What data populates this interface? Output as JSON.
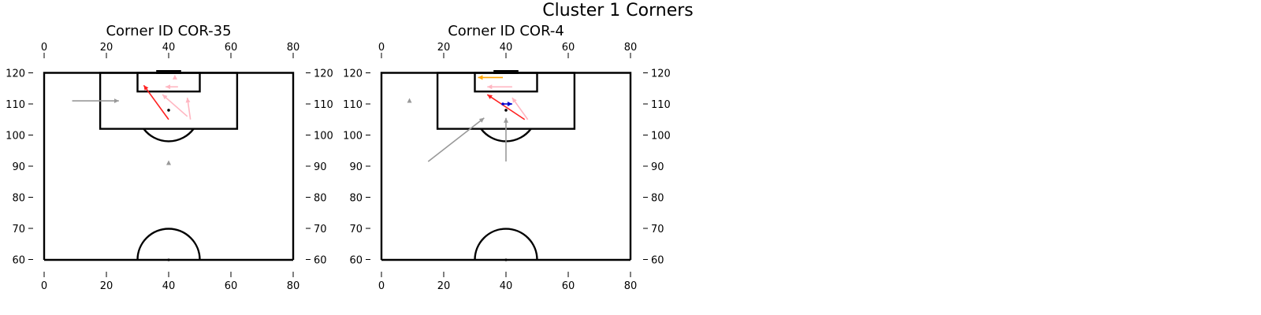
{
  "figure": {
    "title": "Cluster 1 Corners"
  },
  "chart_data": [
    {
      "type": "scatter",
      "title": "Corner ID COR-35",
      "xlim": [
        0,
        80
      ],
      "ylim": [
        60,
        120
      ],
      "xticks": [
        0,
        20,
        40,
        60,
        80
      ],
      "yticks": [
        60,
        70,
        80,
        90,
        100,
        110,
        120
      ],
      "arrows": [
        {
          "x": 9,
          "y": 111,
          "dx": 15,
          "dy": 0,
          "color": "#999999"
        },
        {
          "x": 40,
          "y": 105,
          "dx": -8,
          "dy": 11,
          "color": "#ff2020"
        },
        {
          "x": 47,
          "y": 105,
          "dx": -1,
          "dy": 7,
          "color": "#ffb6c1"
        },
        {
          "x": 46,
          "y": 106,
          "dx": -8,
          "dy": 7,
          "color": "#ffb6c1"
        },
        {
          "x": 43,
          "y": 115.5,
          "dx": -4,
          "dy": 0,
          "color": "#ffb6c1"
        }
      ],
      "markers": [
        {
          "x": 40,
          "y": 91,
          "color": "#999999",
          "shape": "triangle"
        },
        {
          "x": 42,
          "y": 118.5,
          "color": "#ffb6c1",
          "shape": "triangle"
        },
        {
          "x": 40,
          "y": 108,
          "color": "#000000",
          "shape": "dot"
        }
      ]
    },
    {
      "type": "scatter",
      "title": "Corner ID COR-4",
      "xlim": [
        0,
        80
      ],
      "ylim": [
        60,
        120
      ],
      "xticks": [
        0,
        20,
        40,
        60,
        80
      ],
      "yticks": [
        60,
        70,
        80,
        90,
        100,
        110,
        120
      ],
      "arrows": [
        {
          "x": 15,
          "y": 91.5,
          "dx": 18,
          "dy": 14,
          "color": "#999999"
        },
        {
          "x": 40,
          "y": 91.5,
          "dx": 0,
          "dy": 14,
          "color": "#999999"
        },
        {
          "x": 39,
          "y": 118.5,
          "dx": -8,
          "dy": 0,
          "color": "#ffa500"
        },
        {
          "x": 42,
          "y": 115.5,
          "dx": -8,
          "dy": 0,
          "color": "#ffb6c1"
        },
        {
          "x": 46,
          "y": 105,
          "dx": -12,
          "dy": 8,
          "color": "#ff2020"
        },
        {
          "x": 47,
          "y": 105,
          "dx": -5,
          "dy": 7,
          "color": "#ffb6c1"
        },
        {
          "x": 39,
          "y": 110,
          "dx": 3,
          "dy": 0,
          "color": "#0000cd"
        }
      ],
      "markers": [
        {
          "x": 9,
          "y": 111,
          "color": "#999999",
          "shape": "triangle"
        },
        {
          "x": 39,
          "y": 110,
          "color": "#0000cd",
          "shape": "dot"
        },
        {
          "x": 40,
          "y": 108,
          "color": "#000000",
          "shape": "dot"
        }
      ]
    }
  ]
}
